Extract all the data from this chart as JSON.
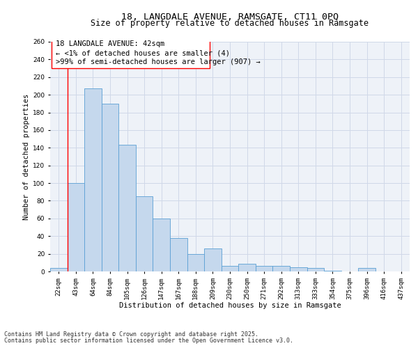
{
  "title_line1": "18, LANGDALE AVENUE, RAMSGATE, CT11 0PQ",
  "title_line2": "Size of property relative to detached houses in Ramsgate",
  "xlabel": "Distribution of detached houses by size in Ramsgate",
  "ylabel": "Number of detached properties",
  "categories": [
    "22sqm",
    "43sqm",
    "64sqm",
    "84sqm",
    "105sqm",
    "126sqm",
    "147sqm",
    "167sqm",
    "188sqm",
    "209sqm",
    "230sqm",
    "250sqm",
    "271sqm",
    "292sqm",
    "313sqm",
    "333sqm",
    "354sqm",
    "375sqm",
    "396sqm",
    "416sqm",
    "437sqm"
  ],
  "values": [
    4,
    100,
    207,
    190,
    143,
    85,
    60,
    38,
    20,
    26,
    6,
    9,
    6,
    6,
    5,
    4,
    1,
    0,
    4,
    0,
    0
  ],
  "bar_color": "#c5d8ed",
  "bar_edge_color": "#5a9fd4",
  "annotation_line1": "18 LANGDALE AVENUE: 42sqm",
  "annotation_line2": "← <1% of detached houses are smaller (4)",
  "annotation_line3": ">99% of semi-detached houses are larger (907) →",
  "ylim": [
    0,
    260
  ],
  "yticks": [
    0,
    20,
    40,
    60,
    80,
    100,
    120,
    140,
    160,
    180,
    200,
    220,
    240,
    260
  ],
  "grid_color": "#d0d8e8",
  "background_color": "#eef2f8",
  "footer_line1": "Contains HM Land Registry data © Crown copyright and database right 2025.",
  "footer_line2": "Contains public sector information licensed under the Open Government Licence v3.0.",
  "title_fontsize": 9.5,
  "subtitle_fontsize": 8.5,
  "axis_label_fontsize": 7.5,
  "tick_fontsize": 6.5,
  "annotation_fontsize": 7.5,
  "footer_fontsize": 6.0
}
